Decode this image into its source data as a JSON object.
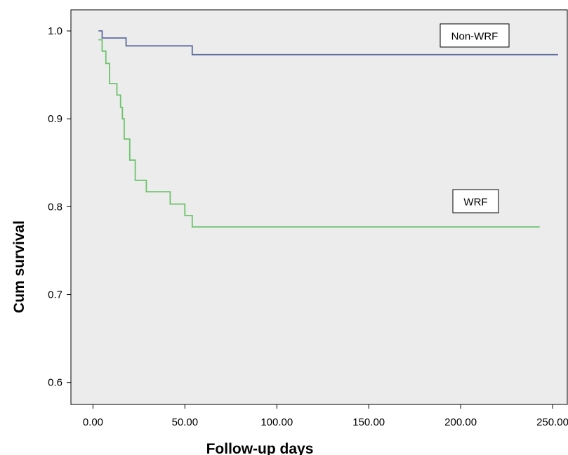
{
  "chart_data": {
    "type": "line",
    "title": "",
    "xlabel": "Follow-up days",
    "ylabel": "Cum survival",
    "xlim": [
      -12,
      258
    ],
    "ylim": [
      0.575,
      1.024
    ],
    "xticks": [
      0,
      50,
      100,
      150,
      200,
      250
    ],
    "xtick_labels": [
      "0.00",
      "50.00",
      "100.00",
      "150.00",
      "200.00",
      "250.00"
    ],
    "yticks": [
      0.6,
      0.7,
      0.8,
      0.9,
      1.0
    ],
    "ytick_labels": [
      "0.6",
      "0.7",
      "0.8",
      "0.9",
      "1.0"
    ],
    "grid": false,
    "background_color": "#ececec",
    "series": [
      {
        "name": "Non-WRF",
        "color": "#5b6b9e",
        "step_points": [
          [
            3,
            1.0
          ],
          [
            5,
            0.992
          ],
          [
            18,
            0.983
          ],
          [
            54,
            0.973
          ],
          [
            253,
            0.973
          ]
        ]
      },
      {
        "name": "WRF",
        "color": "#6cc36c",
        "step_points": [
          [
            3,
            0.99
          ],
          [
            5,
            0.977
          ],
          [
            7,
            0.963
          ],
          [
            9,
            0.94
          ],
          [
            13,
            0.927
          ],
          [
            15,
            0.913
          ],
          [
            16,
            0.9
          ],
          [
            17,
            0.877
          ],
          [
            20,
            0.853
          ],
          [
            23,
            0.83
          ],
          [
            29,
            0.817
          ],
          [
            42,
            0.803
          ],
          [
            50,
            0.79
          ],
          [
            54,
            0.777
          ],
          [
            243,
            0.777
          ]
        ]
      }
    ]
  }
}
